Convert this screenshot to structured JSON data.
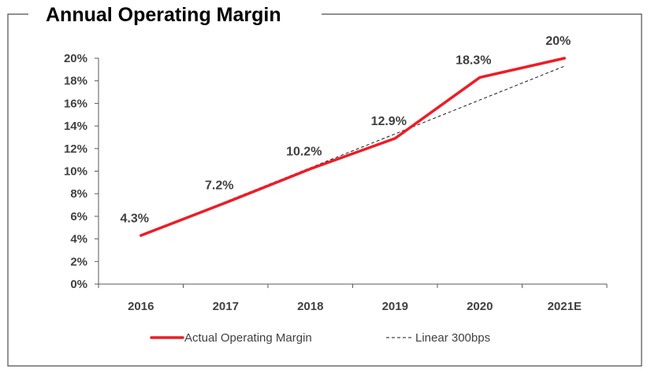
{
  "chart_data": {
    "type": "line",
    "title": "Annual Operating Margin",
    "categories": [
      "2016",
      "2017",
      "2018",
      "2019",
      "2020",
      "2021E"
    ],
    "series": [
      {
        "name": "Actual Operating Margin",
        "values": [
          4.3,
          7.2,
          10.2,
          12.9,
          18.3,
          20
        ],
        "color": "#ee1c25",
        "style": "solid"
      },
      {
        "name": "Linear 300bps",
        "values": [
          4.3,
          7.3,
          10.3,
          13.3,
          16.3,
          19.3
        ],
        "color": "#1a1a1a",
        "style": "dashed"
      }
    ],
    "data_labels": [
      "4.3%",
      "7.2%",
      "10.2%",
      "12.9%",
      "18.3%",
      "20%"
    ],
    "y_ticks": [
      {
        "value": 0,
        "label": "0%"
      },
      {
        "value": 2,
        "label": "2%"
      },
      {
        "value": 4,
        "label": "4%"
      },
      {
        "value": 6,
        "label": "6%"
      },
      {
        "value": 8,
        "label": "8%"
      },
      {
        "value": 10,
        "label": "10%"
      },
      {
        "value": 12,
        "label": "12%"
      },
      {
        "value": 14,
        "label": "14%"
      },
      {
        "value": 16,
        "label": "16%"
      },
      {
        "value": 18,
        "label": "18%"
      },
      {
        "value": 20,
        "label": "20%"
      }
    ],
    "ylim": [
      0,
      20
    ],
    "xlabel": "",
    "ylabel": "",
    "grid": false,
    "legend": {
      "placement": "bottom-center",
      "items": [
        "Actual Operating Margin",
        "Linear 300bps"
      ]
    }
  }
}
